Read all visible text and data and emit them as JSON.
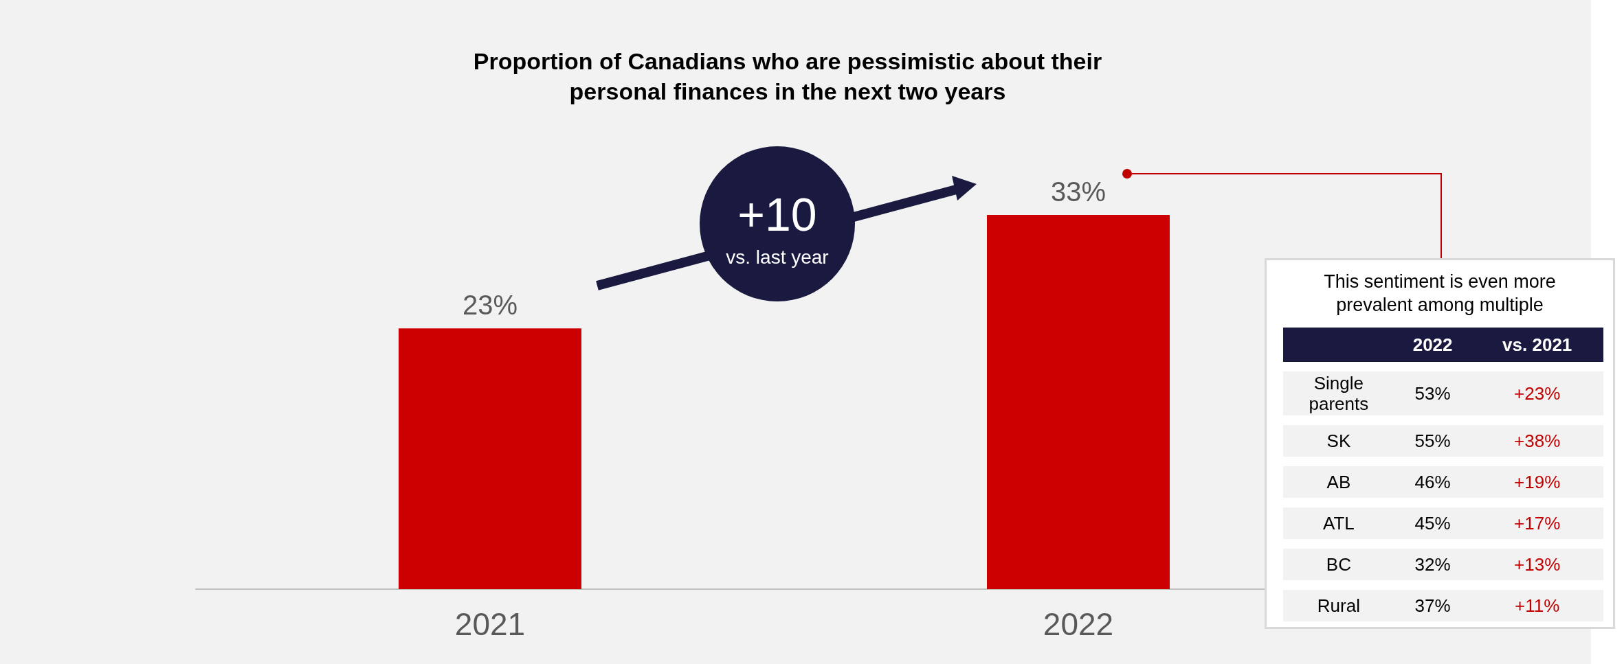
{
  "chart_data": [
    {
      "type": "bar",
      "title": "Proportion of Canadians who are pessimistic about their\npersonal finances in the next two years",
      "categories": [
        "2021",
        "2022"
      ],
      "values": [
        23,
        33
      ],
      "value_labels": [
        "23%",
        "33%"
      ],
      "color": "#cc0000",
      "annotations": [
        "+10",
        "vs. last year"
      ]
    },
    {
      "type": "other",
      "title": "This sentiment is even more\nprevalent among multiple",
      "annotations": [
        "2022",
        "vs. 2021",
        "Single\nparents",
        "53%",
        "+23%",
        "SK",
        "55%",
        "+38%",
        "AB",
        "46%",
        "+19%",
        "ATL",
        "45%",
        "+17%",
        "BC",
        "32%",
        "+13%",
        "Rural",
        "37%",
        "+11%"
      ]
    }
  ]
}
